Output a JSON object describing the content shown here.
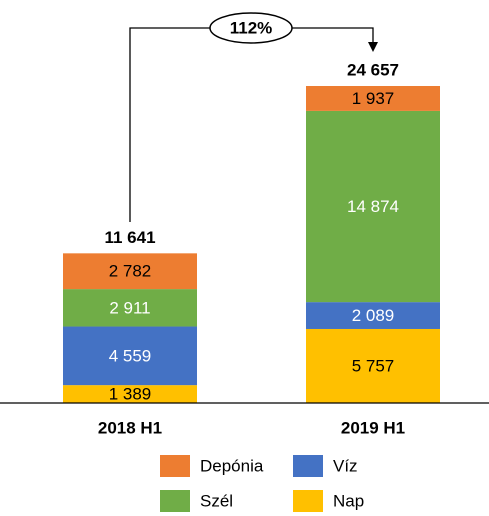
{
  "chart_data": {
    "type": "stacked_bar",
    "categories": [
      "2018 H1",
      "2019 H1"
    ],
    "series": [
      {
        "name": "Nap",
        "color": "#FFC000",
        "label_color": "#000000",
        "values": [
          1389,
          5757
        ],
        "value_labels": [
          "1 389",
          "5 757"
        ]
      },
      {
        "name": "Víz",
        "color": "#4472C4",
        "label_color": "#FFFFFF",
        "values": [
          4559,
          2089
        ],
        "value_labels": [
          "4 559",
          "2 089"
        ]
      },
      {
        "name": "Szél",
        "color": "#70AD47",
        "label_color": "#FFFFFF",
        "values": [
          2911,
          14874
        ],
        "value_labels": [
          "2 911",
          "14 874"
        ]
      },
      {
        "name": "Depónia",
        "color": "#ED7D31",
        "label_color": "#000000",
        "values": [
          2782,
          1937
        ],
        "value_labels": [
          "2 782",
          "1 937"
        ]
      }
    ],
    "totals": [
      11641,
      24657
    ],
    "total_labels": [
      "11 641",
      "24 657"
    ],
    "annotation": "112%"
  }
}
